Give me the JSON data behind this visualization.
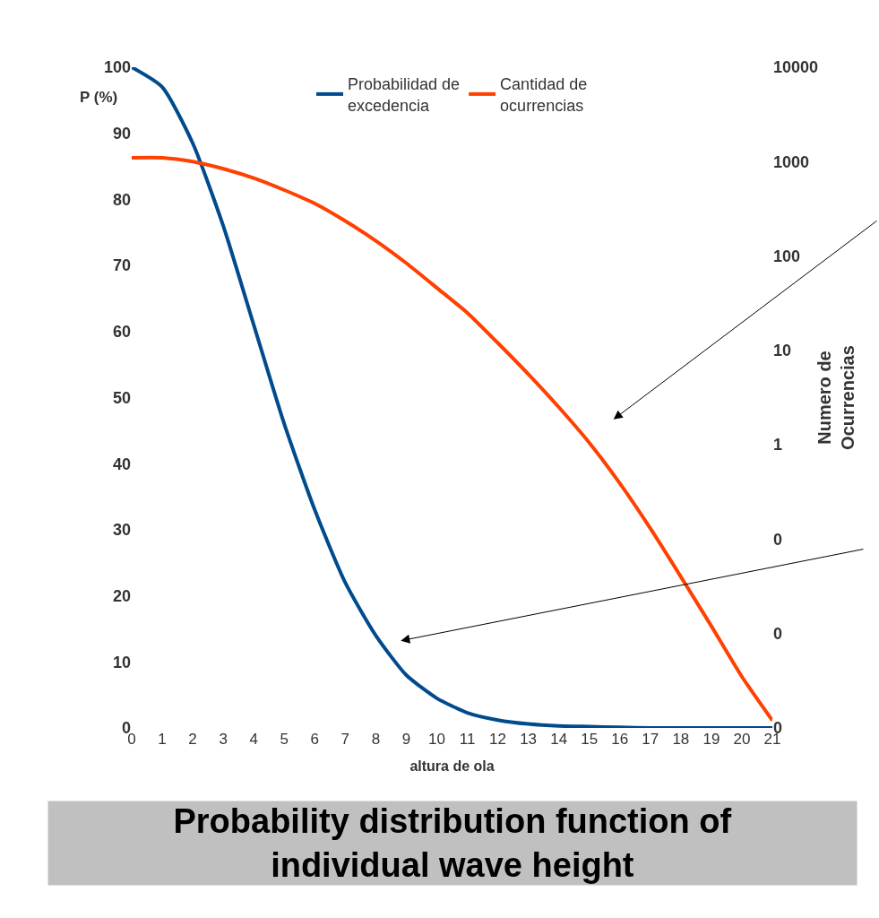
{
  "chart_data": {
    "type": "line",
    "title": "Probability distribution function of individual wave height",
    "xlabel": "altura de ola",
    "ylabel": "P (%)",
    "y2label": "Numero de Ocurrencias",
    "x": [
      0,
      1,
      2,
      3,
      4,
      5,
      6,
      7,
      8,
      9,
      10,
      11,
      12,
      13,
      14,
      15,
      16,
      17,
      18,
      19,
      20,
      21
    ],
    "series": [
      {
        "name": "Probabilidad de excedencia",
        "color": "#004b8d",
        "values": [
          100,
          97,
          88.5,
          76,
          61,
          46,
          33,
          22,
          14,
          8,
          4.5,
          2.3,
          1.2,
          0.6,
          0.3,
          0.2,
          0.1,
          0,
          0,
          0,
          0,
          0
        ]
      },
      {
        "name": "Cantidad de ocurrencias",
        "color": "#ff4000",
        "axis": "y2",
        "values": [
          1100,
          1100,
          1000,
          840,
          670,
          500,
          360,
          235,
          145,
          84,
          46,
          25,
          12,
          5.6,
          2.5,
          1.05,
          0.39,
          0.13,
          0.04,
          0.012,
          0.0035,
          0.0012
        ]
      }
    ],
    "xlim": [
      0,
      21
    ],
    "xticks": [
      0,
      1,
      2,
      3,
      4,
      5,
      6,
      7,
      8,
      9,
      10,
      11,
      12,
      13,
      14,
      15,
      16,
      17,
      18,
      19,
      20,
      21
    ],
    "ylim": [
      0,
      100
    ],
    "yticks": [
      0,
      10,
      20,
      30,
      40,
      50,
      60,
      70,
      80,
      90,
      100
    ],
    "y2lim": [
      0.001,
      10000
    ],
    "y2ticks": [
      {
        "value": 0.001,
        "label": "0"
      },
      {
        "value": 0.01,
        "label": "0"
      },
      {
        "value": 0.1,
        "label": "0"
      },
      1,
      10,
      100,
      1000,
      10000
    ],
    "log": "y2",
    "legend": "top",
    "marker": "none",
    "line_style": "solid"
  }
}
